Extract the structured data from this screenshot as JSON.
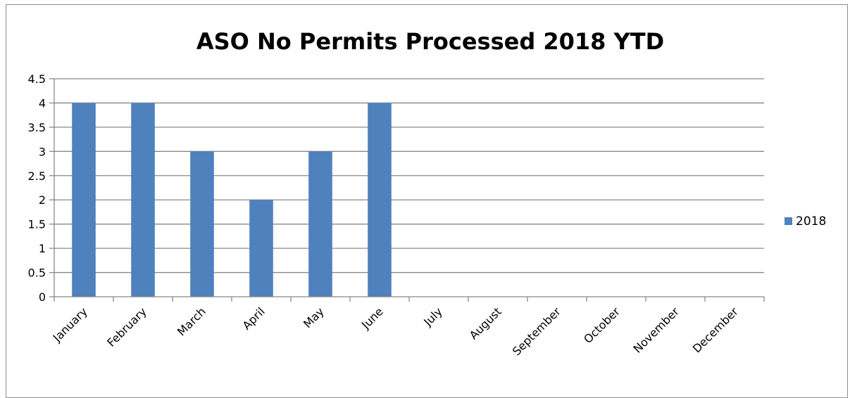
{
  "chart_data": {
    "type": "bar",
    "title": "ASO No Permits Processed 2018 YTD",
    "xlabel": "",
    "ylabel": "",
    "categories": [
      "January",
      "February",
      "March",
      "April",
      "May",
      "June",
      "July",
      "August",
      "September",
      "October",
      "November",
      "December"
    ],
    "series": [
      {
        "name": "2018",
        "color": "#4f81bd",
        "values": [
          4,
          4,
          3,
          2,
          3,
          4,
          0,
          0,
          0,
          0,
          0,
          0
        ]
      }
    ],
    "ylim": [
      0,
      4.5
    ],
    "yticks": [
      "0",
      "0.5",
      "1",
      "1.5",
      "2",
      "2.5",
      "3",
      "3.5",
      "4",
      "4.5"
    ],
    "grid": true,
    "legend_position": "right"
  }
}
